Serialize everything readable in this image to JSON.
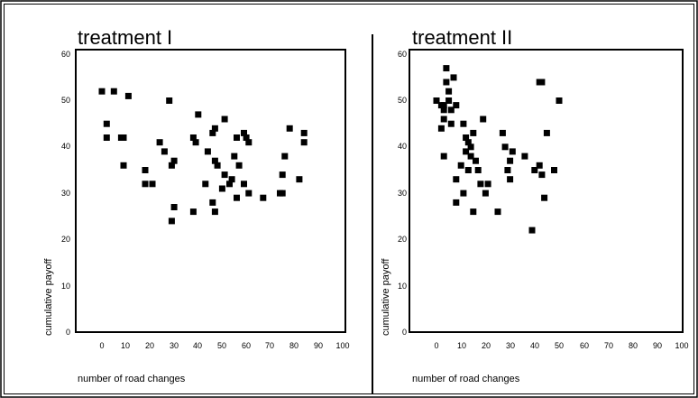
{
  "chart_data": [
    {
      "type": "scatter",
      "title": "treatment I",
      "xlabel": "number of road changes",
      "ylabel": "cumulative payoff",
      "xlim": [
        -10,
        100
      ],
      "ylim": [
        0,
        60
      ],
      "xticks": [
        "0",
        "10",
        "20",
        "30",
        "40",
        "50",
        "60",
        "70",
        "80",
        "90",
        "100"
      ],
      "yticks": [
        "0",
        "10",
        "20",
        "30",
        "40",
        "50",
        "60"
      ],
      "series": [
        {
          "color": "#000000",
          "points": [
            [
              0,
              52
            ],
            [
              5,
              52
            ],
            [
              11,
              51
            ],
            [
              2,
              45
            ],
            [
              2,
              42
            ],
            [
              8,
              42
            ],
            [
              9,
              42
            ],
            [
              9,
              36
            ],
            [
              18,
              35
            ],
            [
              18,
              32
            ],
            [
              21,
              32
            ],
            [
              24,
              41
            ],
            [
              26,
              39
            ],
            [
              28,
              50
            ],
            [
              29,
              36
            ],
            [
              30,
              37
            ],
            [
              29,
              24
            ],
            [
              30,
              27
            ],
            [
              38,
              42
            ],
            [
              39,
              41
            ],
            [
              40,
              47
            ],
            [
              38,
              26
            ],
            [
              43,
              32
            ],
            [
              44,
              39
            ],
            [
              46,
              43
            ],
            [
              47,
              44
            ],
            [
              47,
              37
            ],
            [
              48,
              36
            ],
            [
              46,
              28
            ],
            [
              47,
              26
            ],
            [
              51,
              46
            ],
            [
              51,
              34
            ],
            [
              50,
              31
            ],
            [
              53,
              32
            ],
            [
              54,
              33
            ],
            [
              55,
              38
            ],
            [
              56,
              42
            ],
            [
              56,
              29
            ],
            [
              57,
              36
            ],
            [
              59,
              43
            ],
            [
              59,
              32
            ],
            [
              60,
              42
            ],
            [
              61,
              41
            ],
            [
              61,
              30
            ],
            [
              67,
              29
            ],
            [
              74,
              30
            ],
            [
              75,
              30
            ],
            [
              75,
              34
            ],
            [
              76,
              38
            ],
            [
              78,
              44
            ],
            [
              82,
              33
            ],
            [
              84,
              43
            ],
            [
              84,
              41
            ]
          ]
        }
      ]
    },
    {
      "type": "scatter",
      "title": "treatment II",
      "xlabel": "number of road changes",
      "ylabel": "cumulative payoff",
      "xlim": [
        -10,
        100
      ],
      "ylim": [
        0,
        60
      ],
      "xticks": [
        "0",
        "10",
        "20",
        "30",
        "40",
        "50",
        "60",
        "70",
        "80",
        "90",
        "100"
      ],
      "yticks": [
        "0",
        "10",
        "20",
        "30",
        "40",
        "50",
        "60"
      ],
      "series": [
        {
          "color": "#000000",
          "points": [
            [
              0,
              50
            ],
            [
              2,
              49
            ],
            [
              3,
              49
            ],
            [
              3,
              48
            ],
            [
              4,
              57
            ],
            [
              4,
              54
            ],
            [
              5,
              52
            ],
            [
              5,
              50
            ],
            [
              6,
              48
            ],
            [
              7,
              55
            ],
            [
              6,
              45
            ],
            [
              3,
              46
            ],
            [
              2,
              44
            ],
            [
              3,
              38
            ],
            [
              8,
              49
            ],
            [
              10,
              36
            ],
            [
              8,
              33
            ],
            [
              8,
              28
            ],
            [
              11,
              45
            ],
            [
              11,
              30
            ],
            [
              12,
              42
            ],
            [
              12,
              39
            ],
            [
              13,
              41
            ],
            [
              13,
              35
            ],
            [
              14,
              40
            ],
            [
              14,
              38
            ],
            [
              15,
              43
            ],
            [
              15,
              26
            ],
            [
              16,
              37
            ],
            [
              17,
              35
            ],
            [
              18,
              32
            ],
            [
              19,
              46
            ],
            [
              20,
              30
            ],
            [
              21,
              32
            ],
            [
              25,
              26
            ],
            [
              27,
              43
            ],
            [
              28,
              40
            ],
            [
              29,
              35
            ],
            [
              30,
              37
            ],
            [
              30,
              33
            ],
            [
              31,
              39
            ],
            [
              36,
              38
            ],
            [
              39,
              22
            ],
            [
              40,
              35
            ],
            [
              42,
              36
            ],
            [
              42,
              54
            ],
            [
              43,
              54
            ],
            [
              43,
              34
            ],
            [
              44,
              29
            ],
            [
              45,
              43
            ],
            [
              48,
              35
            ],
            [
              50,
              50
            ]
          ]
        }
      ]
    }
  ]
}
